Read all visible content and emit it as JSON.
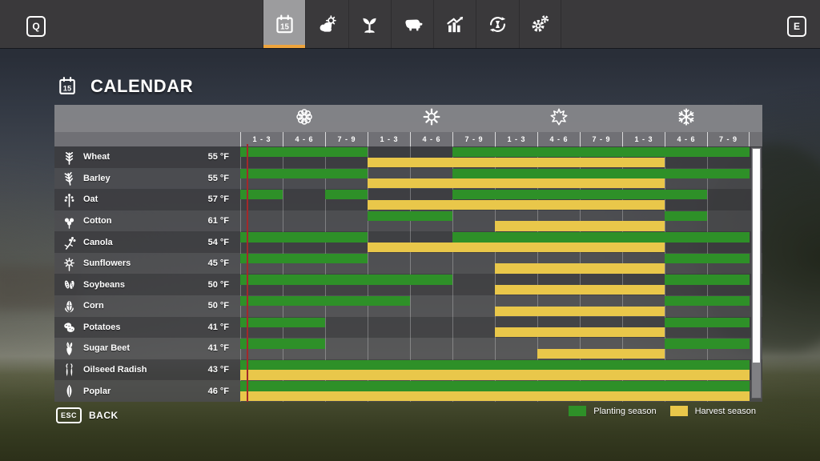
{
  "keys": {
    "left": "Q",
    "right": "E"
  },
  "topbar": {
    "tabs": [
      {
        "id": "calendar",
        "icon": "calendar-icon",
        "active": true
      },
      {
        "id": "weather",
        "icon": "weather-icon",
        "active": false
      },
      {
        "id": "crops",
        "icon": "plant-icon",
        "active": false
      },
      {
        "id": "animals",
        "icon": "cow-icon",
        "active": false
      },
      {
        "id": "statistics",
        "icon": "chart-icon",
        "active": false
      },
      {
        "id": "economy",
        "icon": "cycle-icon",
        "active": false
      },
      {
        "id": "settings",
        "icon": "gear-icon",
        "active": false
      }
    ]
  },
  "title": {
    "text": "CALENDAR",
    "icon": "calendar-icon"
  },
  "calendar": {
    "seasons": [
      {
        "name": "spring",
        "icon": "flower-icon"
      },
      {
        "name": "summer",
        "icon": "sun-icon"
      },
      {
        "name": "autumn",
        "icon": "leaf-icon"
      },
      {
        "name": "winter",
        "icon": "snowflake-icon"
      }
    ],
    "period_labels": [
      "1 - 3",
      "4 - 6",
      "7 - 9"
    ],
    "months_per_year": 12,
    "current_day_marker": {
      "month": 1,
      "fraction": 0.15
    },
    "crops": [
      {
        "name": "Wheat",
        "temp": "55 °F",
        "icon": "wheat-icon",
        "plant": [
          [
            1,
            3
          ],
          [
            6,
            12
          ]
        ],
        "harvest": [
          [
            4,
            10
          ]
        ]
      },
      {
        "name": "Barley",
        "temp": "55 °F",
        "icon": "barley-icon",
        "plant": [
          [
            1,
            3
          ],
          [
            6,
            12
          ]
        ],
        "harvest": [
          [
            4,
            10
          ]
        ]
      },
      {
        "name": "Oat",
        "temp": "57 °F",
        "icon": "oat-icon",
        "plant": [
          [
            1,
            1
          ],
          [
            3,
            3
          ],
          [
            6,
            11
          ]
        ],
        "harvest": [
          [
            4,
            10
          ]
        ]
      },
      {
        "name": "Cotton",
        "temp": "61 °F",
        "icon": "cotton-icon",
        "plant": [
          [
            4,
            5
          ],
          [
            11,
            11
          ]
        ],
        "harvest": [
          [
            7,
            10
          ]
        ]
      },
      {
        "name": "Canola",
        "temp": "54 °F",
        "icon": "canola-icon",
        "plant": [
          [
            1,
            3
          ],
          [
            6,
            12
          ]
        ],
        "harvest": [
          [
            4,
            10
          ]
        ]
      },
      {
        "name": "Sunflowers",
        "temp": "45 °F",
        "icon": "sunflower-icon",
        "plant": [
          [
            1,
            3
          ],
          [
            11,
            12
          ]
        ],
        "harvest": [
          [
            7,
            10
          ]
        ]
      },
      {
        "name": "Soybeans",
        "temp": "50 °F",
        "icon": "soybean-icon",
        "plant": [
          [
            1,
            5
          ],
          [
            11,
            12
          ]
        ],
        "harvest": [
          [
            7,
            10
          ]
        ]
      },
      {
        "name": "Corn",
        "temp": "50 °F",
        "icon": "corn-icon",
        "plant": [
          [
            1,
            4
          ],
          [
            11,
            12
          ]
        ],
        "harvest": [
          [
            7,
            10
          ]
        ]
      },
      {
        "name": "Potatoes",
        "temp": "41 °F",
        "icon": "potato-icon",
        "plant": [
          [
            1,
            2
          ],
          [
            11,
            12
          ]
        ],
        "harvest": [
          [
            7,
            10
          ]
        ]
      },
      {
        "name": "Sugar Beet",
        "temp": "41 °F",
        "icon": "sugarbeet-icon",
        "plant": [
          [
            1,
            2
          ],
          [
            11,
            12
          ]
        ],
        "harvest": [
          [
            8,
            10
          ]
        ]
      },
      {
        "name": "Oilseed Radish",
        "temp": "43 °F",
        "icon": "radish-icon",
        "plant": [
          [
            1,
            12
          ]
        ],
        "harvest": [
          [
            1,
            12
          ]
        ]
      },
      {
        "name": "Poplar",
        "temp": "46 °F",
        "icon": "poplar-icon",
        "plant": [
          [
            1,
            12
          ]
        ],
        "harvest": [
          [
            1,
            12
          ]
        ]
      }
    ]
  },
  "legend": {
    "planting_label": "Planting season",
    "harvest_label": "Harvest season"
  },
  "colors": {
    "planting": "#2e9028",
    "harvest": "#e9c74a",
    "current_day": "#a3282b",
    "active_tab_underline": "#eea43c"
  },
  "footer": {
    "back_key": "ESC",
    "back_label": "BACK"
  }
}
